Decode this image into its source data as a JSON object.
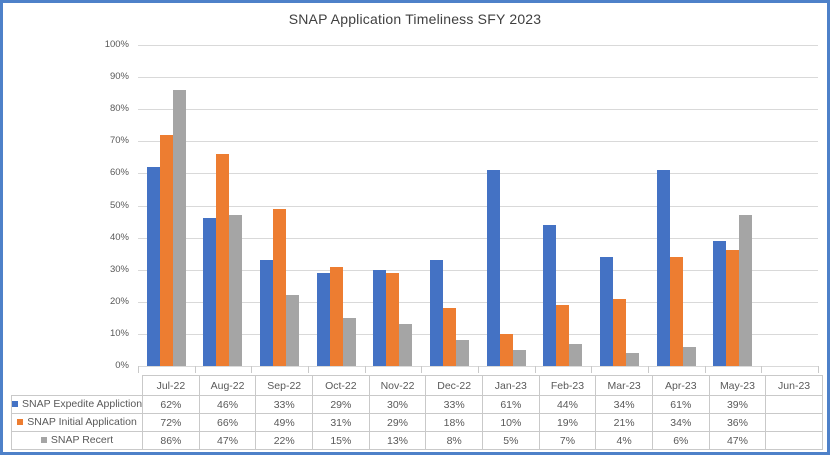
{
  "title": "SNAP Application Timeliness SFY 2023",
  "colors": {
    "series_blue": "#4472C4",
    "series_orange": "#ED7D31",
    "series_gray": "#A5A5A5",
    "frame_border": "#4E81C9",
    "gridline": "#D9D9D9",
    "table_border": "#C9C9C9",
    "text": "#595959",
    "title_text": "#404040"
  },
  "chart_data": {
    "type": "bar",
    "title": "SNAP Application Timeliness SFY 2023",
    "categories": [
      "Jul-22",
      "Aug-22",
      "Sep-22",
      "Oct-22",
      "Nov-22",
      "Dec-22",
      "Jan-23",
      "Feb-23",
      "Mar-23",
      "Apr-23",
      "May-23",
      "Jun-23"
    ],
    "series": [
      {
        "name": "SNAP Expedite Appliction",
        "color": "#4472C4",
        "values": [
          62,
          46,
          33,
          29,
          30,
          33,
          61,
          44,
          34,
          61,
          39,
          null
        ]
      },
      {
        "name": "SNAP Initial Application",
        "color": "#ED7D31",
        "values": [
          72,
          66,
          49,
          31,
          29,
          18,
          10,
          19,
          21,
          34,
          36,
          null
        ]
      },
      {
        "name": "SNAP Recert",
        "color": "#A5A5A5",
        "values": [
          86,
          47,
          22,
          15,
          13,
          8,
          5,
          7,
          4,
          6,
          47,
          null
        ]
      }
    ],
    "xlabel": "",
    "ylabel": "",
    "ylim": [
      0,
      100
    ],
    "y_tick_labels": [
      "0%",
      "10%",
      "20%",
      "30%",
      "40%",
      "50%",
      "60%",
      "70%",
      "80%",
      "90%",
      "100%"
    ],
    "grid": true,
    "legend_position": "data-table-left",
    "value_format": "percent"
  },
  "data_table": {
    "rows": [
      {
        "label": "SNAP Expedite Appliction",
        "values": [
          "62%",
          "46%",
          "33%",
          "29%",
          "30%",
          "33%",
          "61%",
          "44%",
          "34%",
          "61%",
          "39%",
          ""
        ]
      },
      {
        "label": "SNAP Initial Application",
        "values": [
          "72%",
          "66%",
          "49%",
          "31%",
          "29%",
          "18%",
          "10%",
          "19%",
          "21%",
          "34%",
          "36%",
          ""
        ]
      },
      {
        "label": "SNAP Recert",
        "values": [
          "86%",
          "47%",
          "22%",
          "15%",
          "13%",
          "8%",
          "5%",
          "7%",
          "4%",
          "6%",
          "47%",
          ""
        ]
      }
    ]
  }
}
